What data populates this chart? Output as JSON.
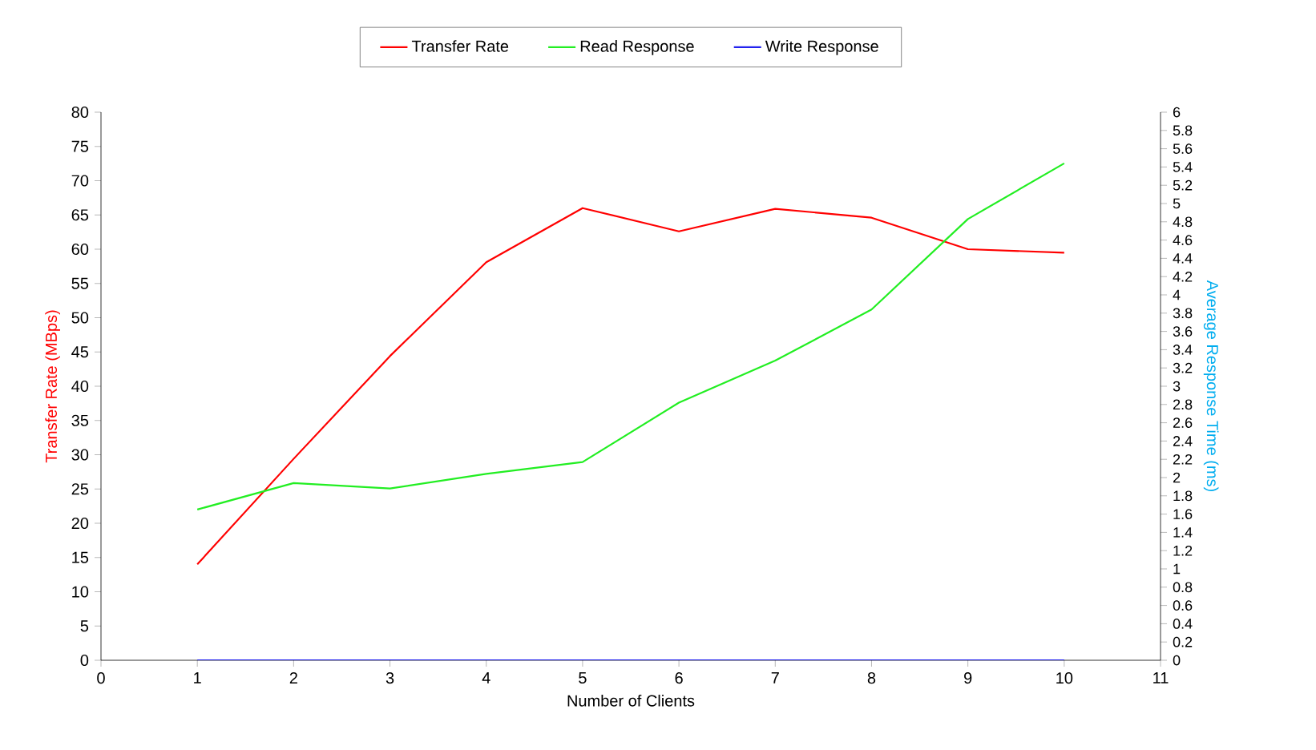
{
  "chart_data": {
    "type": "line",
    "xlabel": "Number of Clients",
    "ylabel": "Transfer Rate (MBps)",
    "y2label": "Average Response Time (ms)",
    "x": [
      1,
      2,
      3,
      4,
      5,
      6,
      7,
      8,
      9,
      10
    ],
    "xlim": [
      0,
      11
    ],
    "xticks": [
      0,
      1,
      2,
      3,
      4,
      5,
      6,
      7,
      8,
      9,
      10,
      11
    ],
    "ylim": [
      0,
      80
    ],
    "yticks": [
      0,
      5,
      10,
      15,
      20,
      25,
      30,
      35,
      40,
      45,
      50,
      55,
      60,
      65,
      70,
      75,
      80
    ],
    "y2lim": [
      0,
      6
    ],
    "y2ticks": [
      0,
      0.2,
      0.4,
      0.6,
      0.8,
      1,
      1.2,
      1.4,
      1.6,
      1.8,
      2,
      2.2,
      2.4,
      2.6,
      2.8,
      3,
      3.2,
      3.4,
      3.6,
      3.8,
      4,
      4.2,
      4.4,
      4.6,
      4.8,
      5,
      5.2,
      5.4,
      5.6,
      5.8,
      6
    ],
    "series": [
      {
        "name": "Transfer Rate",
        "color": "#ff0000",
        "values": [
          14.0,
          29.4,
          44.4,
          58.1,
          66.0,
          62.6,
          65.9,
          64.6,
          60.0,
          59.5
        ]
      },
      {
        "name": "Read Response",
        "color": "#22ee22",
        "axis": "y2",
        "values": [
          1.65,
          1.94,
          1.88,
          2.04,
          2.17,
          2.82,
          3.28,
          3.84,
          4.83,
          5.44
        ]
      },
      {
        "name": "Write Response",
        "color": "#2222ee",
        "axis": "y2",
        "values": [
          0,
          0,
          0,
          0,
          0,
          0,
          0,
          0,
          0,
          0
        ]
      }
    ],
    "grid": false,
    "legend": "top",
    "marker": "none",
    "line_style": "solid"
  }
}
